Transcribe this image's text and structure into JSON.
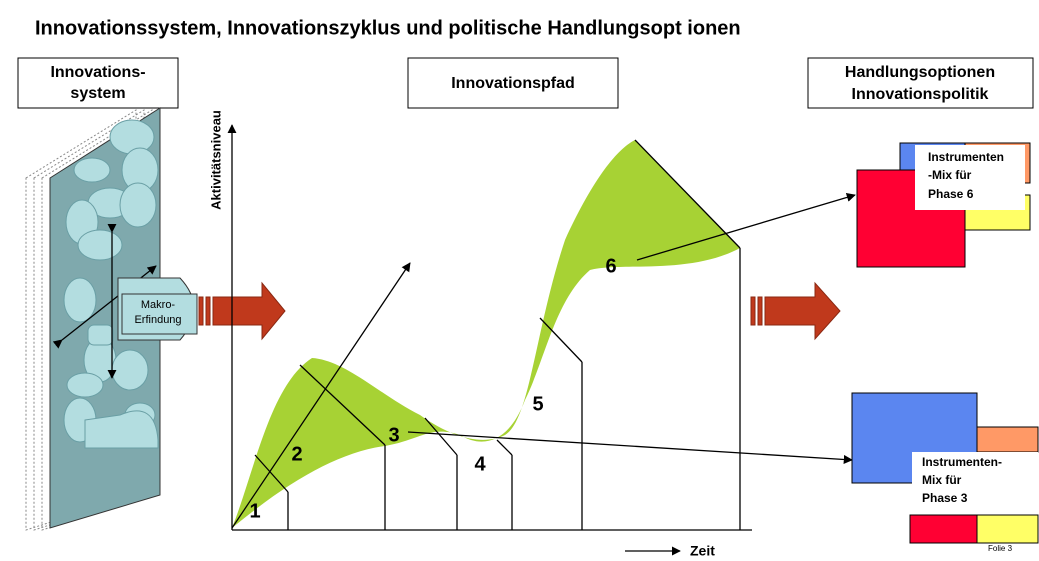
{
  "title": "Innovationssystem, Innovationszyklus und politische Handlungsopt ionen",
  "headers": [
    {
      "lines": [
        "Innovations-",
        "system"
      ]
    },
    {
      "lines": [
        "Innovationspfad"
      ]
    },
    {
      "lines": [
        "Handlungsoptionen",
        "Innovationspolitik"
      ]
    }
  ],
  "system": {
    "lines": [
      "Makro-",
      "Erfindung"
    ]
  },
  "path": {
    "y_axis_label": "Aktivitätsniveau",
    "x_axis_label": "Zeit",
    "phases": [
      "1",
      "2",
      "3",
      "4",
      "5",
      "6"
    ]
  },
  "instruments": [
    {
      "lines": [
        "Instrumenten",
        "-Mix für",
        "Phase 6"
      ]
    },
    {
      "lines": [
        "Instrumenten-",
        "Mix für",
        "Phase 3"
      ]
    }
  ],
  "footer": "Folie 3"
}
